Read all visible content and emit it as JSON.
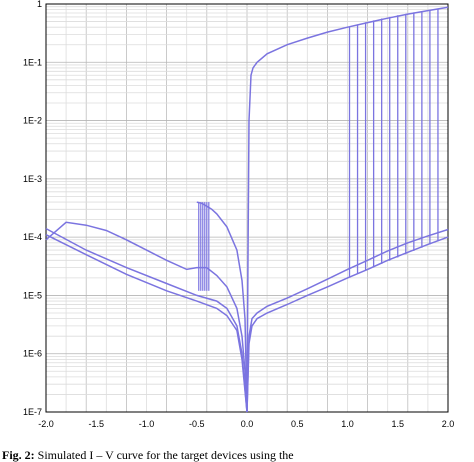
{
  "chart_data": {
    "type": "line",
    "title": "",
    "xlabel": "",
    "ylabel": "",
    "xlim": [
      -2.0,
      2.0
    ],
    "ylim": [
      1e-07,
      1
    ],
    "yscale": "log",
    "grid": true,
    "x_ticks": [
      "-2.0",
      "-1.5",
      "-1.0",
      "-0.5",
      "0.0",
      "0.5",
      "1.0",
      "1.5",
      "2.0"
    ],
    "y_ticks": [
      "1E-7",
      "1E-6",
      "1E-5",
      "1E-4",
      "1E-3",
      "1E-2",
      "1E-1",
      "1"
    ],
    "line_color": "#7b74e0",
    "series": [
      {
        "x": [
          -2.0,
          -1.8,
          -1.6,
          -1.4,
          -1.2,
          -1.0,
          -0.8,
          -0.6,
          -0.5,
          -0.4,
          -0.3,
          -0.2,
          -0.1,
          -0.05,
          -0.02,
          0.0
        ],
        "y": [
          9e-05,
          0.00018,
          0.00016,
          0.00013,
          9e-05,
          6e-05,
          4e-05,
          2.8e-05,
          3e-05,
          3e-05,
          2.2e-05,
          1.4e-05,
          6e-06,
          2e-06,
          5e-07,
          1e-07
        ]
      },
      {
        "x": [
          -2.0,
          -1.6,
          -1.2,
          -0.8,
          -0.5,
          -0.3,
          -0.2,
          -0.1,
          -0.05,
          0.0
        ],
        "y": [
          0.00014,
          6e-05,
          3e-05,
          1.6e-05,
          1e-05,
          8e-06,
          6e-06,
          3e-06,
          1e-06,
          1e-07
        ]
      },
      {
        "x": [
          -2.0,
          -1.6,
          -1.2,
          -0.8,
          -0.5,
          -0.3,
          -0.2,
          -0.1,
          -0.05,
          0.0
        ],
        "y": [
          0.00011,
          5e-05,
          2.3e-05,
          1.2e-05,
          8e-06,
          6e-06,
          4.5e-06,
          2.5e-06,
          8e-07,
          1e-07
        ]
      },
      {
        "x": [
          -0.5,
          -0.45,
          -0.4,
          -0.35,
          -0.3,
          -0.2,
          -0.1,
          -0.05,
          -0.02,
          0.0
        ],
        "y": [
          0.0004,
          0.00038,
          0.00034,
          0.0003,
          0.00025,
          0.00015,
          6e-05,
          1.8e-05,
          4e-06,
          1e-07
        ]
      },
      {
        "x": [
          0.0,
          0.01,
          0.02,
          0.04,
          0.06,
          0.1,
          0.2,
          0.4,
          0.6,
          0.8,
          1.0,
          1.2,
          1.4,
          1.6,
          1.8,
          2.0
        ],
        "y": [
          1e-07,
          5e-05,
          0.01,
          0.06,
          0.08,
          0.1,
          0.14,
          0.2,
          0.26,
          0.33,
          0.4,
          0.48,
          0.57,
          0.67,
          0.77,
          0.88
        ]
      },
      {
        "x": [
          0.0,
          0.02,
          0.05,
          0.1,
          0.2,
          0.4,
          0.6,
          0.8,
          1.0,
          1.2,
          1.4,
          1.6,
          1.8,
          2.0
        ],
        "y": [
          1e-07,
          1.5e-06,
          3e-06,
          4e-06,
          5e-06,
          7e-06,
          1e-05,
          1.4e-05,
          2e-05,
          2.8e-05,
          4e-05,
          5.5e-05,
          7.5e-05,
          0.0001
        ]
      },
      {
        "x": [
          0.0,
          0.02,
          0.05,
          0.1,
          0.2,
          0.4,
          0.6,
          0.8,
          1.0,
          1.2,
          1.4,
          1.6,
          1.8,
          2.0
        ],
        "y": [
          1e-07,
          2e-06,
          4e-06,
          5e-06,
          6.5e-06,
          9e-06,
          1.3e-05,
          1.9e-05,
          2.8e-05,
          4e-05,
          5.8e-05,
          8e-05,
          0.000105,
          0.000135
        ]
      }
    ],
    "switching_x": [
      1.02,
      1.1,
      1.18,
      1.26,
      1.34,
      1.42,
      1.5,
      1.58,
      1.66,
      1.74,
      1.82,
      1.9
    ]
  },
  "caption": {
    "fig": "Fig. 2:",
    "text": "Simulated I – V curve for the target devices using the"
  }
}
